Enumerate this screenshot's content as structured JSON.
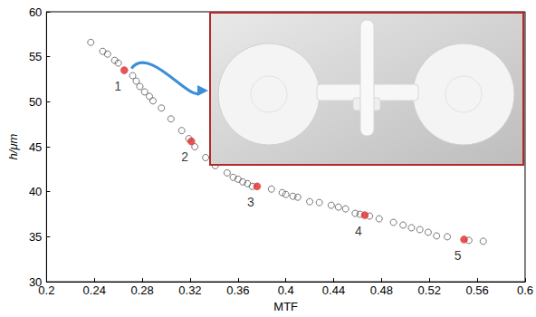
{
  "chart_data": {
    "type": "scatter",
    "x_label": "MTF",
    "y_label": "h/μm",
    "xlim": [
      0.2,
      0.6
    ],
    "xticks": [
      0.2,
      0.24,
      0.28,
      0.32,
      0.36,
      0.4,
      0.44,
      0.48,
      0.52,
      0.56,
      0.6
    ],
    "ylim": [
      30,
      60
    ],
    "yticks": [
      30,
      35,
      40,
      45,
      50,
      55,
      60
    ],
    "grid": false,
    "series": [
      {
        "color": "#555555",
        "marker": "circle_open",
        "x": [
          0.237,
          0.247,
          0.251,
          0.257,
          0.26,
          0.272,
          0.275,
          0.278,
          0.282,
          0.286,
          0.289,
          0.296,
          0.304,
          0.313,
          0.319,
          0.324,
          0.333,
          0.341,
          0.351,
          0.356,
          0.36,
          0.364,
          0.368,
          0.372,
          0.388,
          0.397,
          0.4,
          0.406,
          0.41,
          0.42,
          0.428,
          0.438,
          0.444,
          0.45,
          0.458,
          0.462,
          0.47,
          0.478,
          0.49,
          0.498,
          0.505,
          0.512,
          0.519,
          0.526,
          0.535,
          0.553,
          0.565
        ],
        "values": [
          56.6,
          55.6,
          55.3,
          54.6,
          54.3,
          52.9,
          52.3,
          51.7,
          51.1,
          50.6,
          50.1,
          49.3,
          48.1,
          46.8,
          45.9,
          45.0,
          43.8,
          42.9,
          42.1,
          41.6,
          41.4,
          41.1,
          40.9,
          40.6,
          40.3,
          39.9,
          39.7,
          39.5,
          39.4,
          38.9,
          38.8,
          38.5,
          38.3,
          38.1,
          37.6,
          37.5,
          37.3,
          37.0,
          36.6,
          36.3,
          36.0,
          35.8,
          35.5,
          35.1,
          35.0,
          34.6,
          34.5
        ]
      },
      {
        "color": "#e02b2b",
        "marker": "circle",
        "x": [
          0.265,
          0.321,
          0.376,
          0.466,
          0.549
        ],
        "values": [
          53.5,
          45.6,
          40.6,
          37.4,
          34.7
        ],
        "point_labels": [
          "1",
          "2",
          "3",
          "4",
          "5"
        ]
      }
    ]
  }
}
